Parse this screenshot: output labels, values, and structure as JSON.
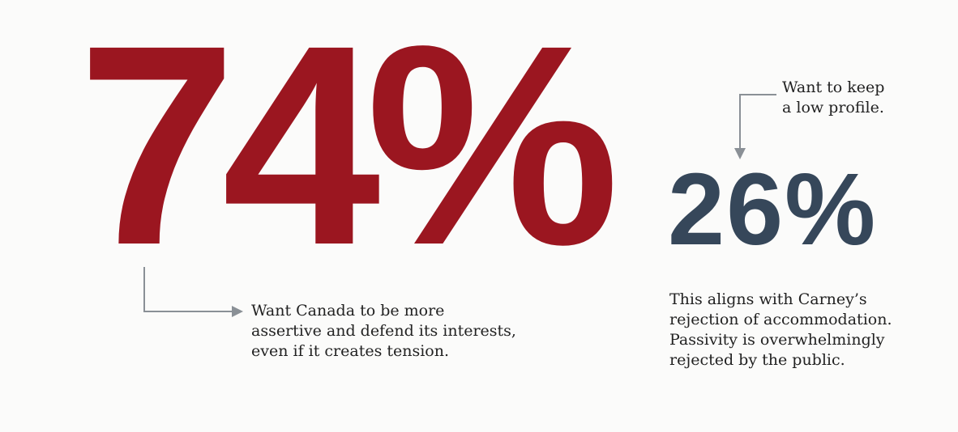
{
  "main_stat": {
    "value": "74%",
    "caption_lines": [
      "Want Canada to be more",
      "assertive and defend its interests,",
      "even if it creates tension."
    ],
    "color": "#9b1620"
  },
  "minor_stat": {
    "value": "26%",
    "caption_lines": [
      "Want to keep",
      "a low profile."
    ],
    "color": "#36475a"
  },
  "note": {
    "lines": [
      "This aligns with Carney’s",
      "rejection of accommodation.",
      "Passivity is overwhelmingly",
      "rejected by the public."
    ]
  },
  "arrow_color": "#8a9096"
}
